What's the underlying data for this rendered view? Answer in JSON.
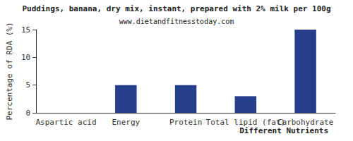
{
  "chart_data": {
    "type": "bar",
    "title": "Puddings, banana, dry mix, instant, prepared with 2% milk per 100g",
    "subtitle": "www.dietandfitnesstoday.com",
    "x_label": "Different Nutrients",
    "y_label": "Percentage of RDA (%)",
    "categories": [
      "Aspartic acid",
      "Energy",
      "Protein",
      "Total lipid (fat)",
      "Carbohydrate"
    ],
    "values": [
      0,
      5,
      5,
      3,
      15
    ],
    "color": "#263f8c",
    "ylim": [
      0,
      15
    ],
    "yticks": [
      0,
      5,
      10,
      15
    ],
    "grid": false
  }
}
